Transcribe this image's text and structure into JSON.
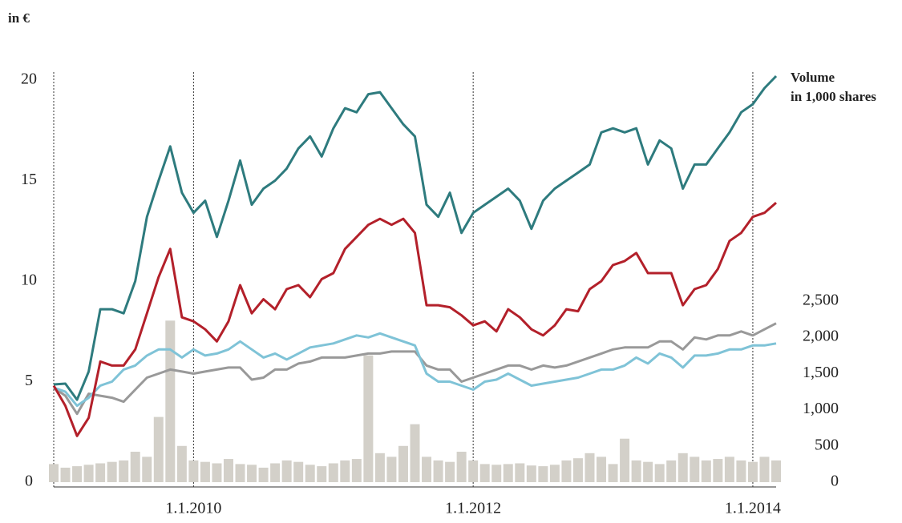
{
  "chart_data": {
    "type": "line",
    "y_label": "in €",
    "y2_label": [
      "Volume",
      "in 1,000 shares"
    ],
    "x": [
      "1.1.2009",
      "1.2.2009",
      "1.3.2009",
      "1.4.2009",
      "1.5.2009",
      "1.6.2009",
      "1.7.2009",
      "1.8.2009",
      "1.9.2009",
      "1.10.2009",
      "1.11.2009",
      "1.12.2009",
      "1.1.2010",
      "1.2.2010",
      "1.3.2010",
      "1.4.2010",
      "1.5.2010",
      "1.6.2010",
      "1.7.2010",
      "1.8.2010",
      "1.9.2010",
      "1.10.2010",
      "1.11.2010",
      "1.12.2010",
      "1.1.2011",
      "1.2.2011",
      "1.3.2011",
      "1.4.2011",
      "1.5.2011",
      "1.6.2011",
      "1.7.2011",
      "1.8.2011",
      "1.9.2011",
      "1.10.2011",
      "1.11.2011",
      "1.12.2011",
      "1.1.2012",
      "1.2.2012",
      "1.3.2012",
      "1.4.2012",
      "1.5.2012",
      "1.6.2012",
      "1.7.2012",
      "1.8.2012",
      "1.9.2012",
      "1.10.2012",
      "1.11.2012",
      "1.12.2012",
      "1.1.2013",
      "1.2.2013",
      "1.3.2013",
      "1.4.2013",
      "1.5.2013",
      "1.6.2013",
      "1.7.2013",
      "1.8.2013",
      "1.9.2013",
      "1.10.2013",
      "1.11.2013",
      "1.12.2013",
      "1.1.2014",
      "1.2.2014",
      "1.3.2014"
    ],
    "xlim": [
      "1.1.2009",
      "1.3.2014"
    ],
    "xticks": [
      "1.1.2010",
      "1.1.2012",
      "1.1.2014"
    ],
    "ylim": [
      0,
      20
    ],
    "yticks": [
      0,
      5,
      10,
      15,
      20
    ],
    "y2lim": [
      0,
      5550
    ],
    "y2ticks": [
      0,
      500,
      {
        "value": 1000,
        "label": "1,000"
      },
      {
        "value": 1500,
        "label": "1,500"
      },
      {
        "value": 2000,
        "label": "2,000"
      },
      {
        "value": 2500,
        "label": "2,500"
      }
    ],
    "series": [
      {
        "type": "bar",
        "axis": "y2",
        "color": "#d3d0c9",
        "values": [
          250,
          200,
          220,
          240,
          260,
          280,
          300,
          420,
          350,
          900,
          2230,
          500,
          300,
          280,
          260,
          320,
          250,
          240,
          200,
          260,
          300,
          280,
          240,
          220,
          260,
          300,
          320,
          1750,
          400,
          350,
          500,
          800,
          350,
          300,
          280,
          420,
          300,
          250,
          240,
          250,
          260,
          230,
          220,
          240,
          300,
          330,
          400,
          350,
          250,
          600,
          300,
          280,
          250,
          300,
          400,
          350,
          300,
          320,
          350,
          300,
          280,
          350,
          300
        ]
      },
      {
        "color": "#999999",
        "values": [
          4.7,
          4.3,
          3.4,
          4.4,
          4.3,
          4.2,
          4,
          4.6,
          5.2,
          5.4,
          5.6,
          5.5,
          5.4,
          5.5,
          5.6,
          5.7,
          5.7,
          5.1,
          5.2,
          5.6,
          5.6,
          5.9,
          6,
          6.2,
          6.2,
          6.2,
          6.3,
          6.4,
          6.4,
          6.5,
          6.5,
          6.5,
          5.8,
          5.6,
          5.6,
          5,
          5.2,
          5.4,
          5.6,
          5.8,
          5.8,
          5.6,
          5.8,
          5.7,
          5.8,
          6,
          6.2,
          6.4,
          6.6,
          6.7,
          6.7,
          6.7,
          7,
          7,
          6.6,
          7.2,
          7.1,
          7.3,
          7.3,
          7.5,
          7.3,
          7.6,
          7.9
        ]
      },
      {
        "color": "#7fc3d7",
        "values": [
          4.7,
          4.5,
          3.8,
          4.2,
          4.8,
          5,
          5.6,
          5.8,
          6.3,
          6.6,
          6.6,
          6.2,
          6.6,
          6.3,
          6.4,
          6.6,
          7,
          6.6,
          6.2,
          6.4,
          6.1,
          6.4,
          6.7,
          6.8,
          6.9,
          7.1,
          7.3,
          7.2,
          7.4,
          7.2,
          7,
          6.8,
          5.4,
          5,
          5,
          4.8,
          4.6,
          5,
          5.1,
          5.4,
          5.1,
          4.8,
          4.9,
          5,
          5.1,
          5.2,
          5.4,
          5.6,
          5.6,
          5.8,
          6.2,
          5.9,
          6.4,
          6.2,
          5.7,
          6.3,
          6.3,
          6.4,
          6.6,
          6.6,
          6.8,
          6.8,
          6.9
        ]
      },
      {
        "color": "#b3202a",
        "values": [
          4.8,
          3.8,
          2.3,
          3.2,
          6,
          5.8,
          5.8,
          6.6,
          8.4,
          10.2,
          11.6,
          8.2,
          8,
          7.6,
          7,
          8,
          9.8,
          8.4,
          9.1,
          8.6,
          9.6,
          9.8,
          9.2,
          10.1,
          10.4,
          11.6,
          12.2,
          12.8,
          13.1,
          12.8,
          13.1,
          12.4,
          8.8,
          8.8,
          8.7,
          8.3,
          7.8,
          8,
          7.5,
          8.6,
          8.2,
          7.6,
          7.3,
          7.8,
          8.6,
          8.5,
          9.6,
          10,
          10.8,
          11,
          11.4,
          10.4,
          10.4,
          10.4,
          8.8,
          9.6,
          9.8,
          10.6,
          12,
          12.4,
          13.2,
          13.4,
          13.9
        ]
      },
      {
        "color": "#2e7b7e",
        "values": [
          4.86,
          4.9,
          4.1,
          5.5,
          8.6,
          8.6,
          8.4,
          10,
          13.2,
          15,
          16.7,
          14.4,
          13.4,
          14,
          12.2,
          14,
          16,
          13.8,
          14.6,
          15,
          15.6,
          16.6,
          17.2,
          16.2,
          17.6,
          18.6,
          18.4,
          19.3,
          19.4,
          18.6,
          17.8,
          17.2,
          13.8,
          13.2,
          14.4,
          12.4,
          13.4,
          13.8,
          14.2,
          14.6,
          14,
          12.6,
          14,
          14.6,
          15,
          15.4,
          15.8,
          17.4,
          17.6,
          17.4,
          17.6,
          15.8,
          17,
          16.6,
          14.6,
          15.8,
          15.8,
          16.6,
          17.4,
          18.4,
          18.8,
          19.6,
          20.2
        ]
      }
    ]
  }
}
